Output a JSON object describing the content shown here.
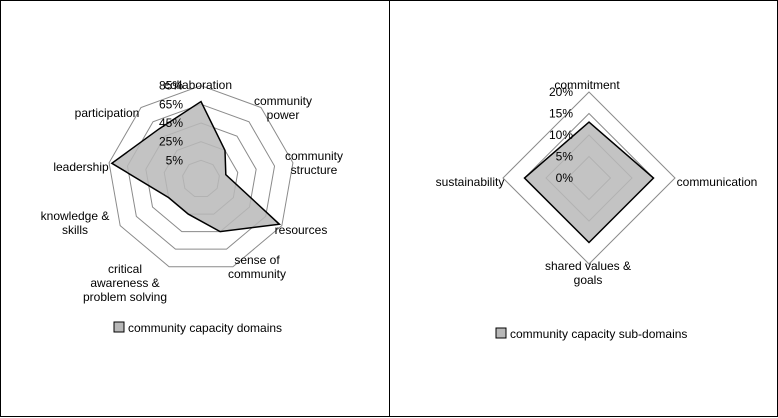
{
  "chart_data": [
    {
      "type": "radar",
      "categories": [
        "collaboration",
        "community power",
        "community structure",
        "resources",
        "sense of community",
        "critical awareness & problem solving",
        "knowledge & skills",
        "leadership",
        "participation"
      ],
      "category_lines": [
        [
          "collaboration"
        ],
        [
          "community",
          "power"
        ],
        [
          "community",
          "structure"
        ],
        [
          "resources"
        ],
        [
          "sense of",
          "community"
        ],
        [
          "critical",
          "awareness &",
          "problem solving"
        ],
        [
          "knowledge &",
          "skills"
        ],
        [
          "leadership"
        ],
        [
          "participation"
        ]
      ],
      "series": [
        {
          "name": "community capacity domains",
          "values": [
            68,
            25,
            12,
            82,
            45,
            25,
            25,
            82,
            55
          ]
        }
      ],
      "ticks": [
        "5%",
        "25%",
        "45%",
        "65%",
        "85%"
      ],
      "tick_values": [
        5,
        25,
        45,
        65,
        85
      ],
      "range": [
        -15,
        105
      ],
      "legend_position": "bottom",
      "fill_color": "#b8b8b8",
      "stroke_color": "#000000",
      "grid_color": "#8a8a8a"
    },
    {
      "type": "radar",
      "categories": [
        "commitment",
        "communication",
        "shared values & goals",
        "sustainability"
      ],
      "category_lines": [
        [
          "commitment"
        ],
        [
          "communication"
        ],
        [
          "shared values &",
          "goals"
        ],
        [
          "sustainability"
        ]
      ],
      "series": [
        {
          "name": "community capacity sub-domains",
          "values": [
            13,
            15,
            15,
            15
          ]
        }
      ],
      "ticks": [
        "0%",
        "5%",
        "10%",
        "15%",
        "20%"
      ],
      "tick_values": [
        0,
        5,
        10,
        15,
        20
      ],
      "range": [
        0,
        20
      ],
      "legend_position": "bottom",
      "fill_color": "#b8b8b8",
      "stroke_color": "#000000",
      "grid_color": "#8a8a8a"
    }
  ]
}
